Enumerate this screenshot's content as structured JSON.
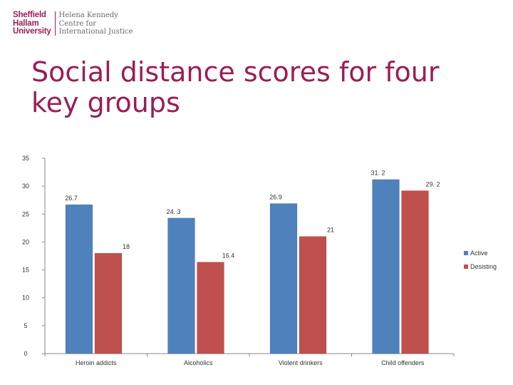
{
  "logo": {
    "line1": "Sheffield",
    "line2": "Hallam",
    "line3": "University",
    "right1": "Helena Kennedy",
    "right2": "Centre for",
    "right3": "International Justice"
  },
  "slide": {
    "title_line1": "Social distance scores for four",
    "title_line2": "key groups"
  },
  "chart_data": {
    "type": "bar",
    "categories": [
      "Heroin addicts",
      "Alcoholics",
      "Violent drinkers",
      "Child offenders"
    ],
    "series": [
      {
        "name": "Active",
        "values": [
          26.7,
          24.3,
          26.9,
          31.2
        ],
        "labels": [
          "26.7",
          "24. 3",
          "26.9",
          "31. 2"
        ],
        "color": "#4f81bd"
      },
      {
        "name": "Desisting",
        "values": [
          18,
          16.4,
          21,
          29.2
        ],
        "labels": [
          "18",
          "16.4",
          "21",
          "29. 2"
        ],
        "color": "#c0504d"
      }
    ],
    "ylim": [
      0,
      35
    ],
    "yticks": [
      0,
      5,
      10,
      15,
      20,
      25,
      30,
      35
    ],
    "legend_position": "right",
    "grid": false
  }
}
